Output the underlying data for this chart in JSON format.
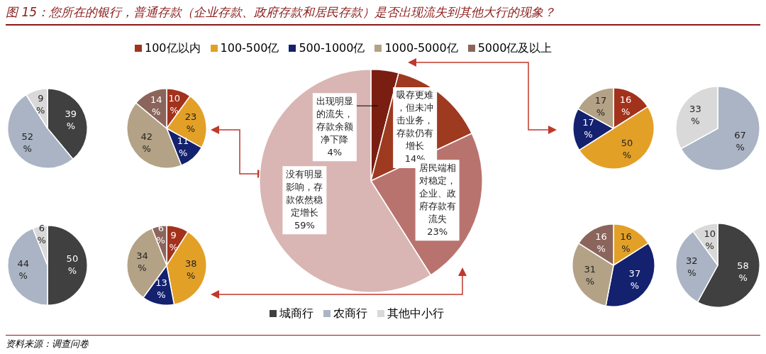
{
  "chart_data": [
    {
      "type": "pie",
      "title": "图 15：您所在的银行，普通存款（企业存款、政府存款和居民存款）是否出现流失到其他大行的现象？",
      "annotations": [
        "资料来源：调查问卷"
      ],
      "categories": [
        null,
        null,
        null
      ],
      "values": [
        39,
        52,
        9
      ],
      "value_labels": [
        "39%",
        "52%",
        "9%"
      ],
      "colors": [
        "#404040",
        "#aab4c4",
        "#d9d9d9"
      ]
    },
    {
      "type": "pie",
      "legend": "top",
      "categories": [
        "100亿以内",
        "100-500亿",
        "500-1000亿",
        "1000-5000亿",
        "5000亿及以上"
      ],
      "values": [
        10,
        23,
        11,
        42,
        14
      ],
      "value_labels": [
        "10%",
        "23%",
        "11%",
        "42%",
        "14%"
      ],
      "colors": [
        "#a3321c",
        "#e3a027",
        "#13216e",
        "#b3a286",
        "#8b655c"
      ]
    },
    {
      "type": "pie",
      "categories": [
        "出现明显的流失，存款余额净下降",
        "吸存更难，但未冲击业务，存款仍有增长",
        "居民端相对稳定，企业、政府存款有流失",
        "没有明显影响，存款依然稳定增长"
      ],
      "values": [
        4,
        14,
        23,
        59
      ],
      "value_labels": [
        "4%",
        "14%",
        "23%",
        "59%"
      ],
      "colors": [
        "#7b1e12",
        "#9d3a1f",
        "#b9736e",
        "#d9b6b3"
      ]
    },
    {
      "type": "pie",
      "categories": [
        null,
        null,
        null,
        null
      ],
      "values": [
        16,
        50,
        17,
        17
      ],
      "value_labels": [
        "16%",
        "50%",
        "17%",
        "17%"
      ],
      "colors": [
        "#a3321c",
        "#e3a027",
        "#13216e",
        "#b3a286"
      ]
    },
    {
      "type": "pie",
      "categories": [
        null,
        null
      ],
      "values": [
        67,
        33
      ],
      "value_labels": [
        "67%",
        "33%"
      ],
      "colors": [
        "#aab4c4",
        "#d9d9d9"
      ]
    },
    {
      "type": "pie",
      "legend": "bottom",
      "categories": [
        "城商行",
        "农商行",
        "其他中小行"
      ],
      "values": [
        50,
        44,
        6
      ],
      "value_labels": [
        "50%",
        "44%",
        "6%"
      ],
      "colors": [
        "#404040",
        "#aab4c4",
        "#d9d9d9"
      ]
    },
    {
      "type": "pie",
      "categories": [
        null,
        null,
        null,
        null,
        null
      ],
      "values": [
        9,
        38,
        13,
        34,
        6
      ],
      "value_labels": [
        "9%",
        "38%",
        "13%",
        "34%",
        "6%"
      ],
      "colors": [
        "#a3321c",
        "#e3a027",
        "#13216e",
        "#b3a286",
        "#8b655c"
      ]
    },
    {
      "type": "pie",
      "categories": [
        null,
        null,
        null,
        null
      ],
      "values": [
        16,
        37,
        31,
        16
      ],
      "value_labels": [
        "16%",
        "37%",
        "31%",
        "16%"
      ],
      "colors": [
        "#e3a027",
        "#13216e",
        "#b3a286",
        "#8b655c"
      ]
    },
    {
      "type": "pie",
      "categories": [
        null,
        null,
        null
      ],
      "values": [
        58,
        32,
        10
      ],
      "value_labels": [
        "58%",
        "32%",
        "10%"
      ],
      "colors": [
        "#404040",
        "#aab4c4",
        "#d9d9d9"
      ]
    }
  ]
}
